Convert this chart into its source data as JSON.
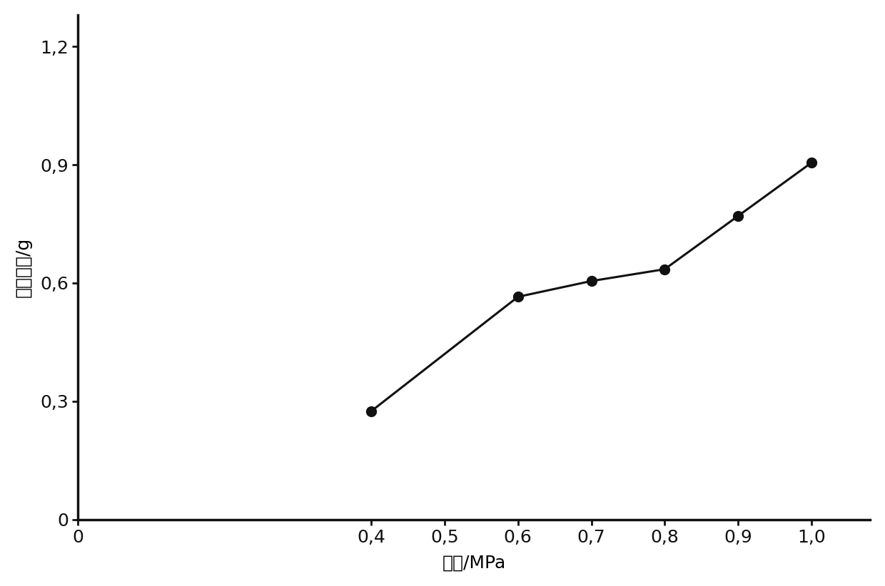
{
  "x": [
    0.4,
    0.6,
    0.7,
    0.8,
    0.9,
    1.0
  ],
  "y": [
    0.275,
    0.565,
    0.605,
    0.635,
    0.77,
    0.905
  ],
  "xlim": [
    0.0,
    1.08
  ],
  "ylim": [
    0.0,
    1.28
  ],
  "xticks": [
    0.0,
    0.4,
    0.5,
    0.6,
    0.7,
    0.8,
    0.9,
    1.0
  ],
  "yticks": [
    0.0,
    0.3,
    0.6,
    0.9,
    1.2
  ],
  "xtick_labels": [
    "0",
    "0,4",
    "0,5",
    "0,6",
    "0,7",
    "0,8",
    "0,9",
    "1,0"
  ],
  "ytick_labels": [
    "0",
    "0,3",
    "0,6",
    "0,9",
    "1,2"
  ],
  "xlabel": "气压/MPa",
  "ylabel": "去除质量/g",
  "line_color": "#111111",
  "marker": "o",
  "marker_size": 10,
  "marker_color": "#111111",
  "linewidth": 2.2,
  "background_color": "#ffffff",
  "tick_label_fontsize": 18,
  "axis_label_fontsize": 18
}
